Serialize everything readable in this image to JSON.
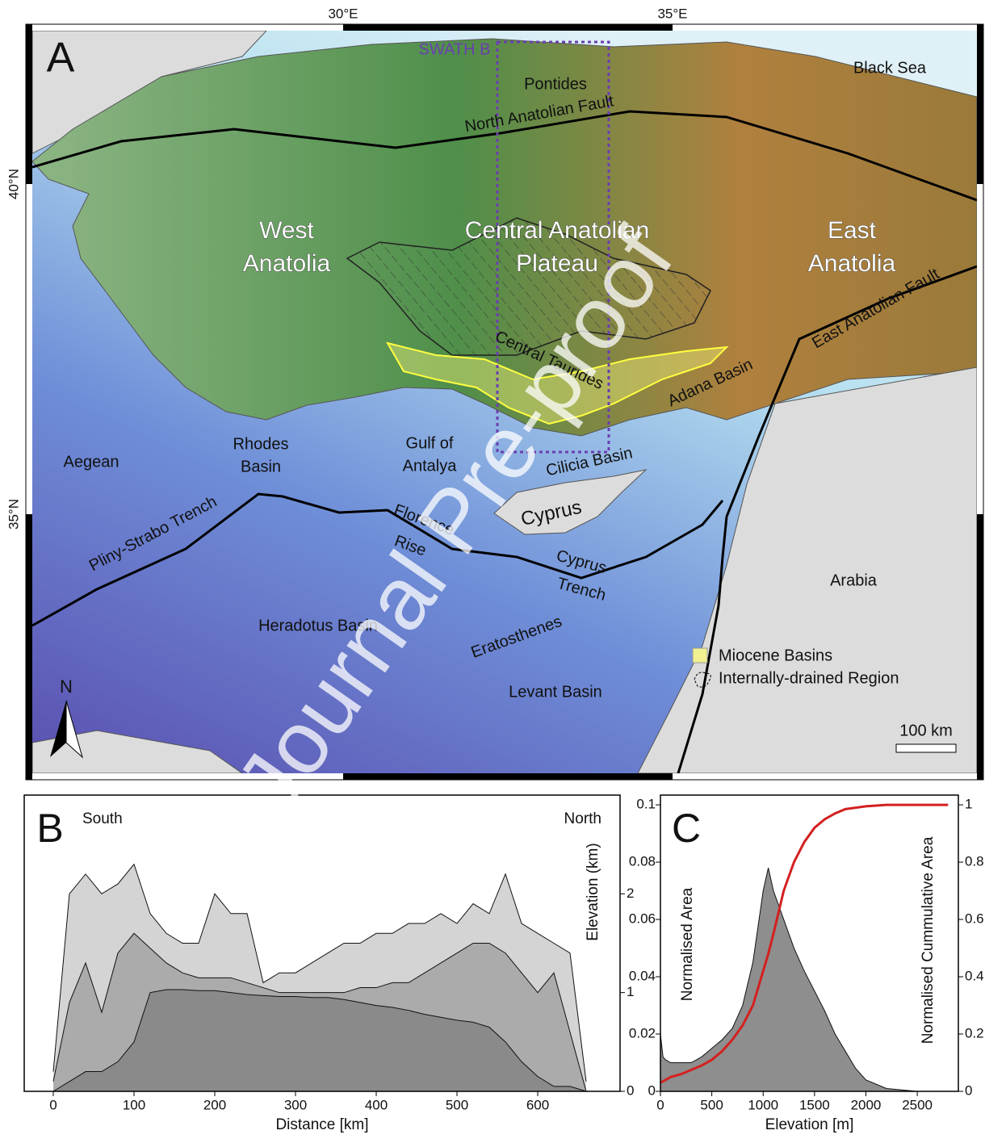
{
  "map": {
    "panel": "A",
    "longitude_labels": [
      "30°E",
      "35°E"
    ],
    "latitude_labels": [
      "40°N",
      "35°N"
    ],
    "swath": "SWATH B",
    "labels": {
      "black_sea": "Black Sea",
      "pontides": "Pontides",
      "naf": "North Anatolian Fault",
      "west": [
        "West",
        "Anatolia"
      ],
      "central": [
        "Central Anatolian",
        "Plateau"
      ],
      "east": [
        "East",
        "Anatolia"
      ],
      "eaf": "East Anatolian Fault",
      "taurides": "Central Taurides",
      "adana": "Adana Basin",
      "aegean": "Aegean",
      "rhodes": [
        "Rhodes",
        "Basin"
      ],
      "antalya": [
        "Gulf of",
        "Antalya"
      ],
      "cilicia": "Cilicia Basin",
      "cyprus": "Cyprus",
      "florence": [
        "Florence",
        "Rise"
      ],
      "pliny": "Pliny-Strabo Trench",
      "cyprus_trench": [
        "Cyprus",
        "Trench"
      ],
      "heradotus": "Heradotus Basin",
      "eratosthenes": "Eratosthenes",
      "levant": "Levant Basin",
      "arabia": "Arabia"
    },
    "legend": [
      "Miocene Basins",
      "Internally-drained Region"
    ],
    "north": "N",
    "scale": "100 km"
  },
  "watermark": "Journal Pre-proof",
  "chart_data": [
    {
      "type": "area",
      "panel": "B",
      "annotations": [
        "South",
        "North"
      ],
      "x_label": "Distance [km]",
      "y_label": "Elevation (km)",
      "x": [
        0,
        20,
        40,
        60,
        80,
        100,
        120,
        140,
        160,
        180,
        200,
        220,
        240,
        260,
        280,
        300,
        320,
        340,
        360,
        380,
        400,
        420,
        440,
        460,
        480,
        500,
        520,
        540,
        560,
        580,
        600,
        620,
        640,
        660
      ],
      "xlim": [
        -36,
        702
      ],
      "xticks": [
        0,
        100,
        200,
        300,
        400,
        500,
        600
      ],
      "ylim": [
        0,
        3
      ],
      "yticks": [
        0,
        1,
        2
      ],
      "series": [
        {
          "color": "#d4d4d4",
          "values": [
            0.2,
            2.0,
            2.2,
            2.0,
            2.1,
            2.3,
            1.8,
            1.6,
            1.5,
            1.5,
            2.0,
            1.8,
            1.8,
            1.1,
            1.2,
            1.2,
            1.3,
            1.4,
            1.5,
            1.5,
            1.6,
            1.6,
            1.7,
            1.7,
            1.8,
            1.7,
            1.9,
            1.8,
            2.2,
            1.7,
            1.6,
            1.5,
            1.4,
            0.1
          ]
        },
        {
          "color": "#ababab",
          "values": [
            0.1,
            0.9,
            1.3,
            0.8,
            1.4,
            1.6,
            1.45,
            1.3,
            1.2,
            1.15,
            1.15,
            1.15,
            1.1,
            1.05,
            1.0,
            1.0,
            1.0,
            1.0,
            1.0,
            1.05,
            1.05,
            1.1,
            1.1,
            1.2,
            1.3,
            1.4,
            1.5,
            1.5,
            1.4,
            1.2,
            1.0,
            1.2,
            0.6,
            0.0
          ]
        },
        {
          "color": "#8a8a8a",
          "values": [
            0,
            0.1,
            0.2,
            0.2,
            0.3,
            0.5,
            1.0,
            1.03,
            1.03,
            1.02,
            1.02,
            1.0,
            0.98,
            0.97,
            0.96,
            0.96,
            0.95,
            0.95,
            0.93,
            0.9,
            0.87,
            0.85,
            0.82,
            0.78,
            0.75,
            0.72,
            0.7,
            0.65,
            0.5,
            0.3,
            0.15,
            0.05,
            0.05,
            0.0
          ]
        }
      ]
    },
    {
      "type": "area",
      "panel": "C",
      "x_label": "Elevation [m]",
      "y_label": "Normalised Area",
      "y2_label": "Normalised Cummulative Area",
      "x": [
        0,
        25,
        50,
        100,
        200,
        300,
        400,
        500,
        600,
        700,
        800,
        900,
        1000,
        1050,
        1100,
        1200,
        1300,
        1400,
        1500,
        1600,
        1700,
        1800,
        1900,
        2000,
        2200,
        2500,
        2800
      ],
      "xlim": [
        0,
        2900
      ],
      "xticks": [
        0,
        500,
        1000,
        1500,
        2000,
        2500
      ],
      "ylim": [
        0,
        0.1034
      ],
      "yticks": [
        0,
        0.02,
        0.04,
        0.06,
        0.08,
        0.1
      ],
      "y2lim": [
        0,
        1.034
      ],
      "y2ticks": [
        0,
        0.2,
        0.4,
        0.6,
        0.8,
        1
      ],
      "series": [
        {
          "color": "#8e8e8e",
          "values": [
            0.02,
            0.012,
            0.011,
            0.01,
            0.01,
            0.01,
            0.012,
            0.015,
            0.018,
            0.022,
            0.03,
            0.045,
            0.07,
            0.078,
            0.07,
            0.06,
            0.05,
            0.042,
            0.035,
            0.028,
            0.02,
            0.014,
            0.008,
            0.004,
            0.001,
            0,
            0
          ]
        },
        {
          "color": "#d42020",
          "axis": "y2",
          "kind": "line",
          "values": [
            0.03,
            0.035,
            0.04,
            0.05,
            0.06,
            0.075,
            0.09,
            0.11,
            0.14,
            0.18,
            0.23,
            0.3,
            0.42,
            0.48,
            0.55,
            0.7,
            0.8,
            0.87,
            0.92,
            0.95,
            0.97,
            0.985,
            0.99,
            0.995,
            1,
            1,
            1
          ]
        }
      ]
    }
  ]
}
